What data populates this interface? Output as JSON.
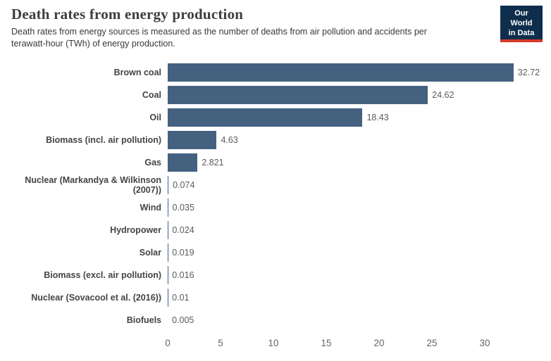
{
  "header": {
    "title": "Death rates from energy production",
    "subtitle": "Death rates from energy sources is measured as the number of deaths from air pollution and accidents per terawatt-hour (TWh) of energy production."
  },
  "logo": {
    "line1": "Our World",
    "line2": "in Data",
    "bg_color": "#0f2e4d",
    "accent_color": "#d93a2b"
  },
  "chart_data": {
    "type": "bar",
    "orientation": "horizontal",
    "title": "Death rates from energy production",
    "xlabel": "",
    "ylabel": "",
    "xlim": [
      0,
      33.2
    ],
    "xticks": [
      0,
      5,
      10,
      15,
      20,
      25,
      30
    ],
    "xtick_labels": [
      "0",
      "5",
      "10",
      "15",
      "20",
      "25",
      "30"
    ],
    "grid": false,
    "bar_color": "#44617f",
    "categories": [
      "Brown coal",
      "Coal",
      "Oil",
      "Biomass (incl. air pollution)",
      "Gas",
      "Nuclear (Markandya & Wilkinson (2007))",
      "Wind",
      "Hydropower",
      "Solar",
      "Biomass (excl. air pollution)",
      "Nuclear (Sovacool et al. (2016))",
      "Biofuels"
    ],
    "values": [
      32.72,
      24.62,
      18.43,
      4.63,
      2.821,
      0.074,
      0.035,
      0.024,
      0.019,
      0.016,
      0.01,
      0.005
    ],
    "value_labels": [
      "32.72",
      "24.62",
      "18.43",
      "4.63",
      "2.821",
      "0.074",
      "0.035",
      "0.024",
      "0.019",
      "0.016",
      "0.01",
      "0.005"
    ]
  }
}
